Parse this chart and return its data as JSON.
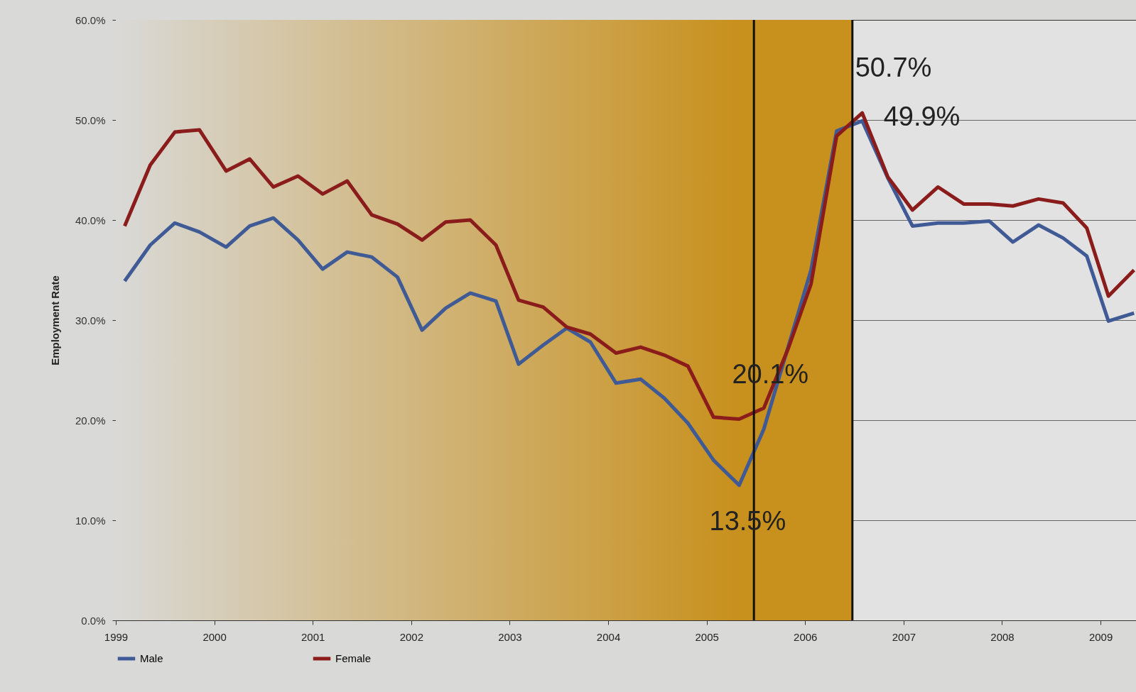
{
  "chart_data": {
    "type": "line",
    "ylabel": "Employment Rate",
    "xlim": [
      1999,
      2009.36
    ],
    "xticks": [
      1999,
      2000,
      2001,
      2002,
      2003,
      2004,
      2005,
      2006,
      2007,
      2008,
      2009
    ],
    "ylim": [
      0,
      60
    ],
    "yticks": [
      {
        "value": 0,
        "label": "0.0%"
      },
      {
        "value": 10,
        "label": "10.0%"
      },
      {
        "value": 20,
        "label": "20.0%"
      },
      {
        "value": 30,
        "label": "30.0%"
      },
      {
        "value": 40,
        "label": "40.0%"
      },
      {
        "value": 50,
        "label": "50.0%"
      },
      {
        "value": 60,
        "label": "60.0%"
      }
    ],
    "grid": "y",
    "legend": "bottom",
    "line_style": "solid",
    "x": [
      1999.09,
      1999.35,
      1999.6,
      1999.85,
      2000.12,
      2000.36,
      2000.6,
      2000.85,
      2001.1,
      2001.35,
      2001.6,
      2001.86,
      2002.11,
      2002.35,
      2002.6,
      2002.86,
      2003.09,
      2003.34,
      2003.58,
      2003.82,
      2004.08,
      2004.33,
      2004.57,
      2004.81,
      2005.07,
      2005.33,
      2005.58,
      2005.83,
      2006.06,
      2006.32,
      2006.58,
      2006.84,
      2007.09,
      2007.35,
      2007.61,
      2007.87,
      2008.11,
      2008.37,
      2008.62,
      2008.86,
      2009.08,
      2009.34
    ],
    "series": [
      {
        "name": "Male",
        "color": "#3f5a95",
        "values": [
          33.9,
          37.5,
          39.7,
          38.8,
          37.3,
          39.4,
          40.2,
          38.0,
          35.1,
          36.8,
          36.3,
          34.3,
          29.0,
          31.2,
          32.7,
          31.9,
          25.6,
          27.5,
          29.2,
          27.8,
          23.7,
          24.1,
          22.2,
          19.7,
          16.0,
          13.5,
          19.1,
          27.4,
          35.0,
          48.9,
          49.9,
          44.2,
          39.4,
          39.7,
          39.7,
          39.9,
          37.8,
          39.5,
          38.2,
          36.4,
          29.9,
          30.7
        ],
        "value_labels": [
          null,
          null,
          null,
          null,
          null,
          null,
          null,
          null,
          null,
          null,
          null,
          null,
          null,
          null,
          null,
          null,
          null,
          null,
          null,
          null,
          null,
          null,
          null,
          null,
          null,
          "13.5%",
          null,
          null,
          null,
          null,
          "49.9%",
          null,
          null,
          null,
          null,
          null,
          null,
          null,
          null,
          null,
          null,
          null
        ]
      },
      {
        "name": "Female",
        "color": "#8b1c1c",
        "values": [
          39.4,
          45.5,
          48.8,
          49.0,
          44.9,
          46.1,
          43.3,
          44.4,
          42.6,
          43.9,
          40.5,
          39.6,
          38.0,
          39.8,
          40.0,
          37.5,
          32.0,
          31.3,
          29.3,
          28.6,
          26.7,
          27.3,
          26.5,
          25.4,
          20.3,
          20.1,
          21.2,
          27.2,
          33.6,
          48.4,
          50.7,
          44.3,
          41.0,
          43.3,
          41.6,
          41.6,
          41.4,
          42.1,
          41.7,
          39.2,
          32.4,
          35.0
        ],
        "value_labels": [
          null,
          null,
          null,
          null,
          null,
          null,
          null,
          null,
          null,
          null,
          null,
          null,
          null,
          null,
          null,
          null,
          null,
          null,
          null,
          null,
          null,
          null,
          null,
          null,
          null,
          "20.1%",
          null,
          null,
          null,
          null,
          "50.7%",
          null,
          null,
          null,
          null,
          null,
          null,
          null,
          null,
          null,
          null,
          null
        ]
      }
    ],
    "bands": [
      {
        "axis": "x",
        "from": 1999,
        "to": 2006.48,
        "color": "#c8901c"
      }
    ],
    "ref_lines": [
      {
        "axis": "x",
        "value": 2005.48,
        "color": "#111111"
      },
      {
        "axis": "x",
        "value": 2006.48,
        "color": "#111111"
      }
    ]
  }
}
